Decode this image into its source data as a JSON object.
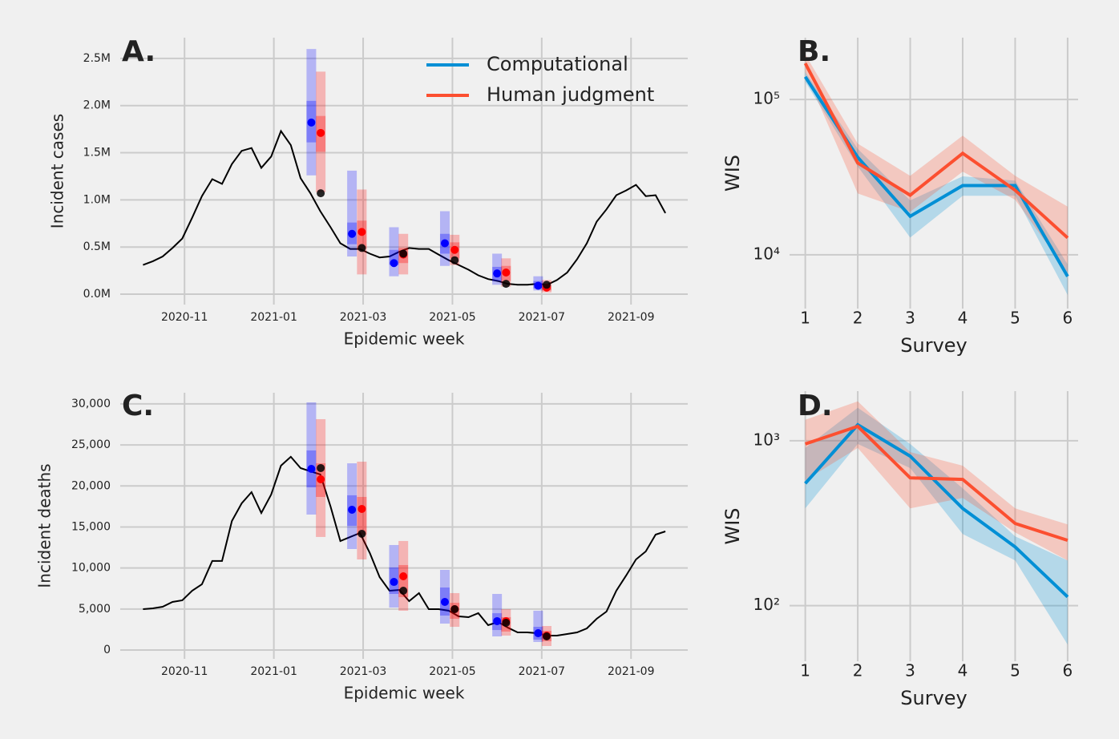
{
  "chart_data": [
    {
      "type": "line",
      "label": "A.",
      "ylabel": "Incident cases",
      "xlabel": "Epidemic week",
      "x": [
        0.07,
        0.29,
        0.51,
        0.73,
        0.95,
        1.17,
        1.39,
        1.62,
        1.84,
        2.06,
        2.28,
        2.5,
        2.72,
        2.94,
        3.16,
        3.38,
        3.6,
        3.82,
        4.04,
        4.27,
        4.49,
        4.71,
        4.93,
        5.15,
        5.37,
        5.59,
        5.81,
        6.03,
        6.25,
        6.47,
        6.69,
        6.92,
        7.14,
        7.36,
        7.58,
        7.8,
        8.02,
        8.24,
        8.46,
        8.68,
        8.9,
        9.12,
        9.34,
        9.57,
        9.79,
        10.01,
        10.23,
        10.45,
        10.67,
        10.89,
        11.11,
        11.33,
        11.55,
        11.77
      ],
      "values": [
        310000,
        350000,
        400000,
        490000,
        590000,
        810000,
        1040000,
        1220000,
        1170000,
        1380000,
        1520000,
        1550000,
        1340000,
        1460000,
        1730000,
        1580000,
        1230000,
        1070000,
        880000,
        710000,
        540000,
        480000,
        480000,
        430000,
        390000,
        400000,
        450000,
        490000,
        480000,
        480000,
        420000,
        360000,
        310000,
        260000,
        200000,
        160000,
        140000,
        110000,
        100000,
        100000,
        110000,
        100000,
        150000,
        230000,
        370000,
        540000,
        770000,
        900000,
        1050000,
        1100000,
        1160000,
        1040000,
        1050000,
        860000
      ],
      "color": "#000000",
      "forecasts": [
        {
          "name": "Computational",
          "color": "#0000ff",
          "legend_color": "#008fd5",
          "x": [
            3.84,
            4.75,
            5.69,
            6.83,
            8.0,
            8.92
          ],
          "median": [
            1820000,
            640000,
            330000,
            540000,
            220000,
            90000
          ],
          "lower50": [
            1610000,
            530000,
            310000,
            430000,
            140000,
            60000
          ],
          "upper50": [
            2050000,
            760000,
            470000,
            640000,
            290000,
            140000
          ],
          "lower95": [
            1260000,
            400000,
            190000,
            300000,
            100000,
            40000
          ],
          "upper95": [
            2600000,
            1310000,
            710000,
            880000,
            430000,
            190000
          ]
        },
        {
          "name": "Human judgment",
          "color": "#ff0000",
          "legend_color": "#fc4f30",
          "x": [
            4.05,
            4.97,
            5.9,
            7.05,
            8.2,
            9.11
          ],
          "median": [
            1710000,
            660000,
            420000,
            470000,
            230000,
            70000
          ],
          "lower50": [
            1510000,
            480000,
            330000,
            380000,
            140000,
            40000
          ],
          "upper50": [
            1890000,
            780000,
            490000,
            550000,
            300000,
            100000
          ],
          "lower95": [
            1080000,
            210000,
            210000,
            310000,
            80000,
            20000
          ],
          "upper95": [
            2360000,
            1110000,
            640000,
            630000,
            380000,
            150000
          ]
        }
      ],
      "observed": {
        "x": [
          4.05,
          4.97,
          5.9,
          7.05,
          8.2,
          9.11
        ],
        "values": [
          1070000,
          490000,
          430000,
          360000,
          110000,
          100000
        ],
        "color": "#000000"
      },
      "xlim": [
        -0.44,
        12.27
      ],
      "ylim": [
        -110000,
        2720000
      ],
      "xticks": [
        {
          "value": 1,
          "label": "2020-11"
        },
        {
          "value": 3,
          "label": "2021-01"
        },
        {
          "value": 5,
          "label": "2021-03"
        },
        {
          "value": 7,
          "label": "2021-05"
        },
        {
          "value": 9,
          "label": "2021-07"
        },
        {
          "value": 11,
          "label": "2021-09"
        }
      ],
      "yticks": [
        {
          "value": 0,
          "label": "0.0M"
        },
        {
          "value": 500000,
          "label": "0.5M"
        },
        {
          "value": 1000000,
          "label": "1.0M"
        },
        {
          "value": 1500000,
          "label": "1.5M"
        },
        {
          "value": 2000000,
          "label": "2.0M"
        },
        {
          "value": 2500000,
          "label": "2.5M"
        }
      ],
      "grid": true,
      "legend": "upper right"
    },
    {
      "type": "line",
      "label": "B.",
      "ylabel": "WIS",
      "xlabel": "Survey",
      "yscale": "log",
      "x": [
        1,
        2,
        3,
        4,
        5,
        6
      ],
      "series": [
        {
          "color": "#008fd5",
          "values": [
            140000,
            42400,
            17700,
            27900,
            27900,
            7250
          ],
          "lower": [
            130000,
            37000,
            12900,
            24000,
            24000,
            5510
          ],
          "upper": [
            150000,
            48000,
            22400,
            32000,
            30000,
            8670
          ]
        },
        {
          "color": "#fc4f30",
          "values": [
            171000,
            39000,
            24200,
            45000,
            26000,
            12850
          ],
          "lower": [
            150000,
            24800,
            18900,
            34300,
            22600,
            7700
          ],
          "upper": [
            195000,
            51900,
            32200,
            58400,
            32200,
            20400
          ]
        }
      ],
      "xlim": [
        0.7,
        6.2
      ],
      "ylim": [
        4500,
        250000
      ],
      "xticks": [
        1,
        2,
        3,
        4,
        5,
        6
      ],
      "yticks": [
        {
          "value": 10000,
          "label": "10⁴"
        },
        {
          "value": 100000,
          "label": "10⁵"
        }
      ],
      "grid": true
    },
    {
      "type": "line",
      "label": "C.",
      "ylabel": "Incident deaths",
      "xlabel": "Epidemic week",
      "x": [
        0.07,
        0.29,
        0.51,
        0.73,
        0.95,
        1.17,
        1.39,
        1.62,
        1.84,
        2.06,
        2.28,
        2.5,
        2.72,
        2.94,
        3.16,
        3.38,
        3.6,
        3.82,
        4.04,
        4.27,
        4.49,
        4.71,
        4.93,
        5.15,
        5.37,
        5.59,
        5.81,
        6.03,
        6.25,
        6.47,
        6.69,
        6.92,
        7.14,
        7.36,
        7.58,
        7.8,
        8.02,
        8.24,
        8.46,
        8.68,
        8.9,
        9.12,
        9.34,
        9.57,
        9.79,
        10.01,
        10.23,
        10.45,
        10.67,
        10.89,
        11.11,
        11.33,
        11.55,
        11.77
      ],
      "values": [
        4980,
        5080,
        5280,
        5860,
        6060,
        7230,
        8010,
        10850,
        10850,
        15730,
        17880,
        19250,
        16710,
        18950,
        22470,
        23550,
        22180,
        21790,
        21400,
        17490,
        13290,
        13780,
        14260,
        11820,
        8890,
        7230,
        7330,
        5960,
        6940,
        4980,
        4980,
        4790,
        4100,
        4010,
        4490,
        3030,
        3420,
        2740,
        2150,
        2150,
        2050,
        1760,
        1760,
        1950,
        2150,
        2640,
        3810,
        4690,
        7230,
        9080,
        11040,
        12020,
        14070,
        14460
      ],
      "color": "#000000",
      "forecasts": [
        {
          "color": "#0000ff",
          "x": [
            3.84,
            4.75,
            5.69,
            6.83,
            8.0,
            8.92
          ],
          "median": [
            22080,
            17100,
            8300,
            5860,
            3520,
            2050
          ],
          "lower50": [
            19830,
            15140,
            6840,
            4200,
            2440,
            1270
          ],
          "upper50": [
            24330,
            18860,
            10060,
            7620,
            4490,
            2830
          ],
          "lower95": [
            16510,
            12310,
            5180,
            3220,
            1660,
            980
          ],
          "upper95": [
            30190,
            22760,
            12800,
            9770,
            6840,
            4790
          ]
        },
        {
          "color": "#ff0000",
          "x": [
            4.05,
            4.97,
            5.9,
            7.05,
            8.2,
            9.11
          ],
          "median": [
            20810,
            17200,
            8990,
            4980,
            3520,
            1760
          ],
          "lower50": [
            18660,
            14070,
            6450,
            3810,
            2250,
            1070
          ],
          "upper50": [
            22760,
            18660,
            10360,
            5760,
            4010,
            2340
          ],
          "lower95": [
            13780,
            11040,
            4790,
            2830,
            1760,
            490
          ],
          "upper95": [
            28140,
            22960,
            13290,
            6940,
            4980,
            2930
          ]
        }
      ],
      "observed": {
        "x": [
          4.05,
          4.97,
          5.9,
          7.05,
          8.2,
          9.11
        ],
        "values": [
          22180,
          14170,
          7230,
          4980,
          3320,
          1660
        ],
        "color": "#000000"
      },
      "xlim": [
        -0.44,
        12.27
      ],
      "ylim": [
        -1075,
        31360
      ],
      "xticks": [
        {
          "value": 1,
          "label": "2020-11"
        },
        {
          "value": 3,
          "label": "2021-01"
        },
        {
          "value": 5,
          "label": "2021-03"
        },
        {
          "value": 7,
          "label": "2021-05"
        },
        {
          "value": 9,
          "label": "2021-07"
        },
        {
          "value": 11,
          "label": "2021-09"
        }
      ],
      "yticks": [
        0,
        {
          "value": 5000,
          "label": "5,000"
        },
        {
          "value": 10000,
          "label": "10,000"
        },
        {
          "value": 15000,
          "label": "15,000"
        },
        {
          "value": 20000,
          "label": "20,000"
        },
        {
          "value": 25000,
          "label": "25,000"
        },
        {
          "value": 30000,
          "label": "30,000"
        }
      ],
      "grid": true
    },
    {
      "type": "line",
      "label": "D.",
      "ylabel": "WIS",
      "xlabel": "Survey",
      "yscale": "log",
      "x": [
        1,
        2,
        3,
        4,
        5,
        6
      ],
      "series": [
        {
          "color": "#008fd5",
          "values": [
            551,
            1250,
            807,
            389,
            227,
            113
          ],
          "lower": [
            389,
            956,
            683,
            272,
            188,
            58
          ],
          "upper": [
            904,
            1585,
            956,
            515,
            263,
            188
          ]
        },
        {
          "color": "#fc4f30",
          "values": [
            956,
            1224,
            596,
            583,
            315,
            249
          ],
          "lower": [
            577,
            904,
            389,
            450,
            278,
            188
          ],
          "upper": [
            1339,
            1734,
            854,
            706,
            389,
            311
          ]
        }
      ],
      "xlim": [
        0.7,
        6.2
      ],
      "ylim": [
        46,
        2000
      ],
      "xticks": [
        1,
        2,
        3,
        4,
        5,
        6
      ],
      "yticks": [
        {
          "value": 100,
          "label": "10²"
        },
        {
          "value": 1000,
          "label": "10³"
        }
      ],
      "grid": true
    }
  ]
}
